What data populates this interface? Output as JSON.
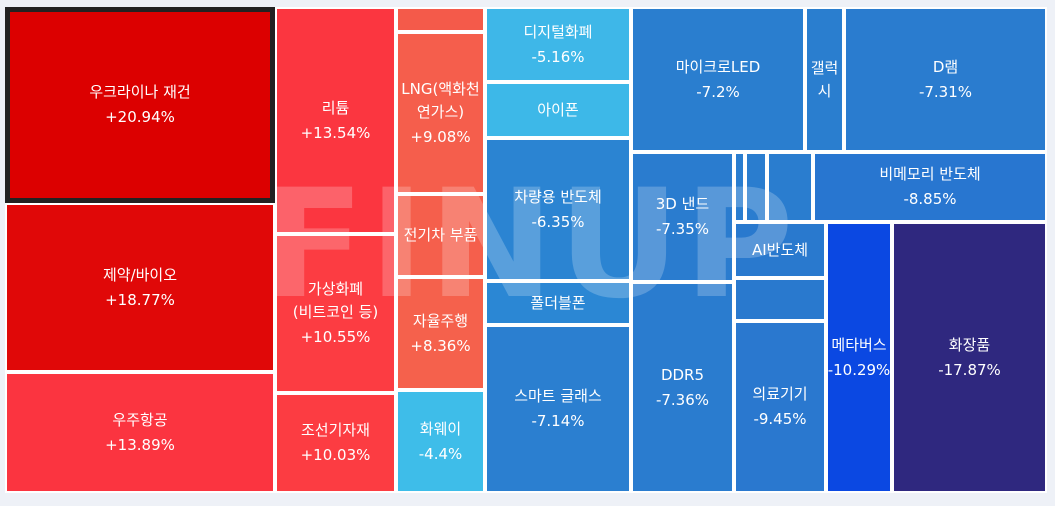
{
  "watermark": "FINUP",
  "tiles": [
    {
      "id": "t1",
      "name": "우크라이나 재건",
      "pct": "+20.94%",
      "color": "#dc0000",
      "selected": true
    },
    {
      "id": "t2",
      "name": "제약/바이오",
      "pct": "+18.77%",
      "color": "#e00808"
    },
    {
      "id": "t3",
      "name": "우주항공",
      "pct": "+13.89%",
      "color": "#fb3440"
    },
    {
      "id": "t4",
      "name": "리튬",
      "pct": "+13.54%",
      "color": "#fb3640"
    },
    {
      "id": "t5",
      "name": "가상화폐(비트코인 등)",
      "pct": "+10.55%",
      "color": "#fc3c42"
    },
    {
      "id": "t6",
      "name": "조선기자재",
      "pct": "+10.03%",
      "color": "#fc3c42"
    },
    {
      "id": "t7",
      "name": "",
      "pct": "",
      "color": "#f45a4a"
    },
    {
      "id": "t8",
      "name": "LNG(액화천연가스)",
      "pct": "+9.08%",
      "color": "#f55e4c"
    },
    {
      "id": "t9",
      "name": "전기차 부품",
      "pct": "",
      "color": "#f55f4c"
    },
    {
      "id": "t10",
      "name": "자율주행",
      "pct": "+8.36%",
      "color": "#f5614c"
    },
    {
      "id": "t11",
      "name": "화웨이",
      "pct": "-4.4%",
      "color": "#3ebde9"
    },
    {
      "id": "t12",
      "name": "디지털화폐",
      "pct": "-5.16%",
      "color": "#3eb7e8"
    },
    {
      "id": "t13",
      "name": "아이폰",
      "pct": "",
      "color": "#3db8e8"
    },
    {
      "id": "t14",
      "name": "차량용 반도체",
      "pct": "-6.35%",
      "color": "#2b84d2"
    },
    {
      "id": "t15",
      "name": "폴더블폰",
      "pct": "",
      "color": "#2b87d4"
    },
    {
      "id": "t16",
      "name": "스마트 글래스",
      "pct": "-7.14%",
      "color": "#2b7fd0"
    },
    {
      "id": "t17",
      "name": "마이크로LED",
      "pct": "-7.2%",
      "color": "#2a7ecf"
    },
    {
      "id": "t18",
      "name": "갤럭시",
      "pct": "",
      "color": "#2a7ecf"
    },
    {
      "id": "t19",
      "name": "D램",
      "pct": "-7.31%",
      "color": "#2a7ccf"
    },
    {
      "id": "t20",
      "name": "3D 낸드",
      "pct": "-7.35%",
      "color": "#2a7ccf"
    },
    {
      "id": "t21",
      "name": "",
      "pct": "",
      "color": "#2a7dcf"
    },
    {
      "id": "t22",
      "name": "",
      "pct": "",
      "color": "#2a7dcf"
    },
    {
      "id": "t23",
      "name": "",
      "pct": "",
      "color": "#2a7dcf"
    },
    {
      "id": "t24",
      "name": "비메모리 반도체",
      "pct": "-8.85%",
      "color": "#2876d0"
    },
    {
      "id": "t25",
      "name": "AI반도체",
      "pct": "",
      "color": "#2979ce"
    },
    {
      "id": "t26",
      "name": "",
      "pct": "",
      "color": "#2979ce"
    },
    {
      "id": "t27",
      "name": "DDR5",
      "pct": "-7.36%",
      "color": "#2a7ccf"
    },
    {
      "id": "t28",
      "name": "의료기기",
      "pct": "-9.45%",
      "color": "#2a78cf"
    },
    {
      "id": "t29",
      "name": "메타버스",
      "pct": "-10.29%",
      "color": "#0b48e2"
    },
    {
      "id": "t30",
      "name": "화장품",
      "pct": "-17.87%",
      "color": "#2f287f"
    }
  ]
}
